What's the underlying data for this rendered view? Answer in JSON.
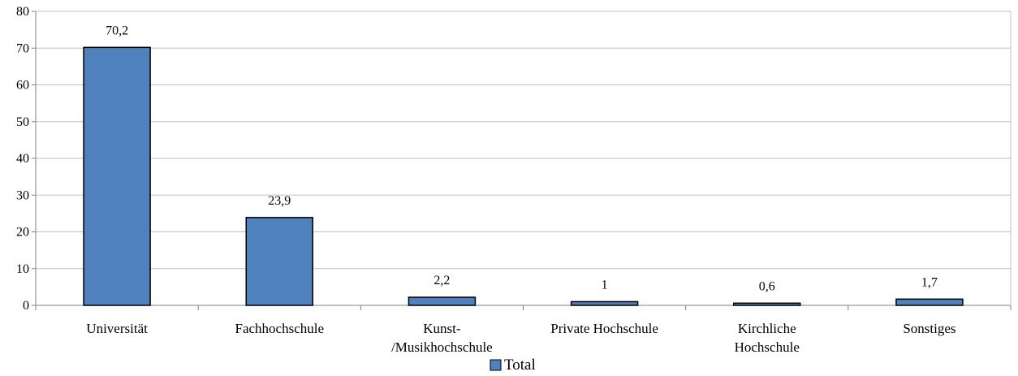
{
  "chart_data": {
    "type": "bar",
    "categories": [
      [
        "Universität"
      ],
      [
        "Fachhochschule"
      ],
      [
        "Kunst-",
        "/Musikhochschule"
      ],
      [
        "Private Hochschule"
      ],
      [
        "Kirchliche",
        "Hochschule"
      ],
      [
        "Sonstiges"
      ]
    ],
    "series": [
      {
        "name": "Total",
        "values": [
          70.2,
          23.9,
          2.2,
          1,
          0.6,
          1.7
        ],
        "labels": [
          "70,2",
          "23,9",
          "2,2",
          "1",
          "0,6",
          "1,7"
        ],
        "color": "#4F81BD"
      }
    ],
    "y_ticks": [
      0,
      10,
      20,
      30,
      40,
      50,
      60,
      70,
      80
    ],
    "ylim": [
      0,
      80
    ],
    "grid": true,
    "legend": "bottom",
    "colors": {
      "bar_fill": "#4F81BD",
      "bar_stroke": "#000000",
      "grid": "#C0C0C0",
      "axis": "#808080"
    }
  }
}
